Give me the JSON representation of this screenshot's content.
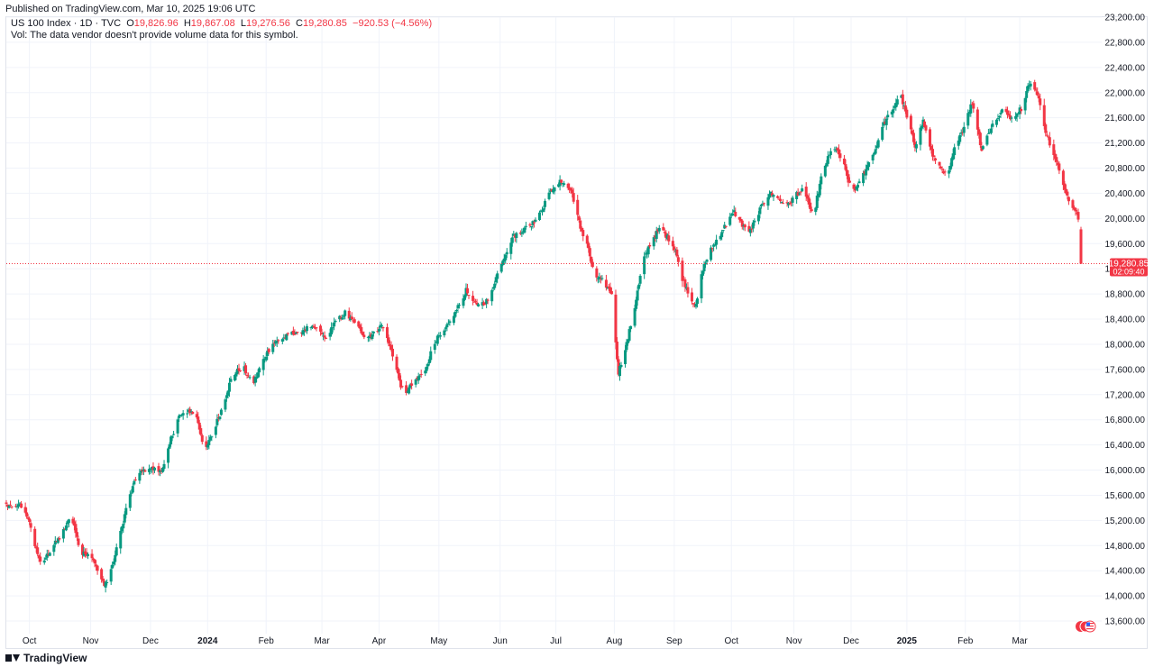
{
  "published": "Published on TradingView.com, Mar 10, 2025 19:06 UTC",
  "legend": {
    "symbol": "US 100 Index · 1D · TVC",
    "open_label": "O",
    "open": "19,826.96",
    "high_label": "H",
    "high": "19,867.08",
    "low_label": "L",
    "low": "19,276.56",
    "close_label": "C",
    "close": "19,280.85",
    "change": "−920.53 (−4.56%)",
    "vol_note": "Vol: The data vendor doesn't provide volume data for this symbol."
  },
  "footer": {
    "brand": "TradingView",
    "logo_icon": "tradingview-logo-icon"
  },
  "colors": {
    "up": "#089981",
    "down": "#f23645",
    "grid": "#f0f3fa",
    "price_line": "#f23645"
  },
  "chart_data": {
    "type": "candlestick",
    "y_axis": {
      "range": [
        13400,
        23200
      ],
      "ticks": [
        13600,
        14000,
        14400,
        14800,
        15200,
        15600,
        16000,
        16400,
        16800,
        17200,
        17600,
        18000,
        18400,
        18800,
        19200,
        19600,
        20000,
        20400,
        20800,
        21200,
        21600,
        22000,
        22400,
        22800,
        23200
      ],
      "tick_labels": [
        "13,600.00",
        "14,000.00",
        "14,400.00",
        "14,800.00",
        "15,200.00",
        "15,600.00",
        "16,000.00",
        "16,400.00",
        "16,800.00",
        "17,200.00",
        "17,600.00",
        "18,000.00",
        "18,400.00",
        "18,800.00",
        "19,200.00",
        "19,600.00",
        "20,000.00",
        "20,400.00",
        "20,800.00",
        "21,200.00",
        "21,600.00",
        "22,000.00",
        "22,400.00",
        "22,800.00",
        "23,200.00"
      ]
    },
    "x_axis": {
      "labels": [
        "Oct",
        "Nov",
        "Dec",
        "2024",
        "Feb",
        "Mar",
        "Apr",
        "May",
        "Jun",
        "Jul",
        "Aug",
        "Sep",
        "Oct",
        "Nov",
        "Dec",
        "2025",
        "Feb",
        "Mar"
      ],
      "bold_labels": [
        "2024",
        "2025"
      ],
      "label_index": [
        17,
        62,
        106,
        148,
        191,
        232,
        274,
        318,
        363,
        404,
        447,
        491,
        533,
        579,
        621,
        662,
        705,
        745
      ]
    },
    "last_price": {
      "value": 19280.85,
      "label": "19,280.85",
      "countdown": "02:09:40"
    },
    "anchors": [
      [
        0,
        15450
      ],
      [
        6,
        15360
      ],
      [
        10,
        15450
      ],
      [
        16,
        15250
      ],
      [
        20,
        14850
      ],
      [
        26,
        14500
      ],
      [
        33,
        14750
      ],
      [
        40,
        14950
      ],
      [
        48,
        15280
      ],
      [
        55,
        14650
      ],
      [
        62,
        14700
      ],
      [
        72,
        14150
      ],
      [
        78,
        14480
      ],
      [
        83,
        14900
      ],
      [
        89,
        15480
      ],
      [
        96,
        15900
      ],
      [
        104,
        16050
      ],
      [
        112,
        15980
      ],
      [
        117,
        16100
      ],
      [
        121,
        16500
      ],
      [
        127,
        16850
      ],
      [
        134,
        16950
      ],
      [
        140,
        16850
      ],
      [
        146,
        16300
      ],
      [
        151,
        16550
      ],
      [
        158,
        16950
      ],
      [
        166,
        17500
      ],
      [
        174,
        17650
      ],
      [
        181,
        17350
      ],
      [
        189,
        17750
      ],
      [
        195,
        18000
      ],
      [
        204,
        18100
      ],
      [
        213,
        18200
      ],
      [
        221,
        18250
      ],
      [
        228,
        18250
      ],
      [
        234,
        18100
      ],
      [
        242,
        18350
      ],
      [
        249,
        18500
      ],
      [
        257,
        18300
      ],
      [
        265,
        18100
      ],
      [
        276,
        18300
      ],
      [
        283,
        17900
      ],
      [
        292,
        17200
      ],
      [
        300,
        17400
      ],
      [
        308,
        17600
      ],
      [
        315,
        18050
      ],
      [
        322,
        18200
      ],
      [
        330,
        18500
      ],
      [
        338,
        18850
      ],
      [
        346,
        18600
      ],
      [
        354,
        18700
      ],
      [
        364,
        19300
      ],
      [
        372,
        19700
      ],
      [
        378,
        19800
      ],
      [
        386,
        19900
      ],
      [
        395,
        20200
      ],
      [
        402,
        20500
      ],
      [
        409,
        20600
      ],
      [
        416,
        20400
      ],
      [
        422,
        19850
      ],
      [
        427,
        19600
      ],
      [
        432,
        19100
      ],
      [
        439,
        19000
      ],
      [
        445,
        18800
      ],
      [
        450,
        17550
      ],
      [
        456,
        18000
      ],
      [
        462,
        18600
      ],
      [
        468,
        19300
      ],
      [
        474,
        19650
      ],
      [
        481,
        19850
      ],
      [
        486,
        19700
      ],
      [
        492,
        19500
      ],
      [
        496,
        19100
      ],
      [
        502,
        18800
      ],
      [
        507,
        18600
      ],
      [
        512,
        19200
      ],
      [
        518,
        19500
      ],
      [
        526,
        19800
      ],
      [
        535,
        20100
      ],
      [
        541,
        19900
      ],
      [
        547,
        19800
      ],
      [
        553,
        20100
      ],
      [
        561,
        20400
      ],
      [
        568,
        20300
      ],
      [
        574,
        20200
      ],
      [
        581,
        20400
      ],
      [
        587,
        20450
      ],
      [
        593,
        20000
      ],
      [
        600,
        20750
      ],
      [
        608,
        21150
      ],
      [
        615,
        20900
      ],
      [
        621,
        20450
      ],
      [
        626,
        20500
      ],
      [
        632,
        20800
      ],
      [
        638,
        21050
      ],
      [
        645,
        21500
      ],
      [
        652,
        21750
      ],
      [
        657,
        22000
      ],
      [
        662,
        21600
      ],
      [
        668,
        21150
      ],
      [
        674,
        21550
      ],
      [
        680,
        21050
      ],
      [
        686,
        20800
      ],
      [
        692,
        20650
      ],
      [
        698,
        21200
      ],
      [
        704,
        21450
      ],
      [
        710,
        21850
      ],
      [
        717,
        21100
      ],
      [
        725,
        21500
      ],
      [
        732,
        21700
      ],
      [
        739,
        21600
      ],
      [
        746,
        21750
      ],
      [
        752,
        22150
      ],
      [
        758,
        22000
      ],
      [
        764,
        21400
      ],
      [
        769,
        21050
      ],
      [
        775,
        20700
      ],
      [
        781,
        20300
      ],
      [
        786,
        20150
      ],
      [
        790,
        19826.96
      ]
    ]
  }
}
